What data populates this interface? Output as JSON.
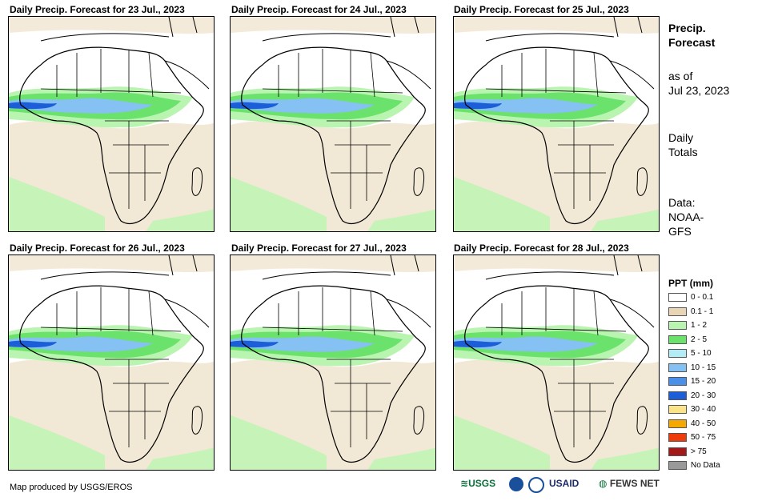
{
  "panels": [
    {
      "title": "Daily Precip. Forecast for 23 Jul., 2023"
    },
    {
      "title": "Daily Precip. Forecast for 24 Jul., 2023"
    },
    {
      "title": "Daily Precip. Forecast for 25 Jul., 2023"
    },
    {
      "title": "Daily Precip. Forecast for 26 Jul., 2023"
    },
    {
      "title": "Daily Precip. Forecast for 27 Jul., 2023"
    },
    {
      "title": "Daily Precip. Forecast for 28 Jul., 2023"
    }
  ],
  "sidebar": {
    "heading_line1": "Precip.",
    "heading_line2": "Forecast",
    "asof_line1": "as of",
    "asof_line2": "Jul 23, 2023",
    "totals_line1": "Daily",
    "totals_line2": "Totals",
    "data_line1": "Data:",
    "data_line2": "NOAA-",
    "data_line3": "GFS"
  },
  "legend": {
    "title": "PPT (mm)",
    "items": [
      {
        "label": "0 - 0.1",
        "color": "#ffffff"
      },
      {
        "label": "0.1 - 1",
        "color": "#e8d5b5"
      },
      {
        "label": "1 - 2",
        "color": "#b9f5b0"
      },
      {
        "label": "2 - 5",
        "color": "#6be26b"
      },
      {
        "label": "5 - 10",
        "color": "#b4ecf5"
      },
      {
        "label": "10 - 15",
        "color": "#86c1f3"
      },
      {
        "label": "15 - 20",
        "color": "#4a90e8"
      },
      {
        "label": "20 - 30",
        "color": "#1c5ed8"
      },
      {
        "label": "30 - 40",
        "color": "#fbe38a"
      },
      {
        "label": "40 - 50",
        "color": "#f5a800"
      },
      {
        "label": "50 - 75",
        "color": "#ef3b0a"
      },
      {
        "label": "> 75",
        "color": "#a31818"
      },
      {
        "label": "No Data",
        "color": "#999999"
      }
    ]
  },
  "footer": {
    "credit": "Map produced by USGS/EROS"
  },
  "logos": {
    "usgs": "USGS",
    "usaid": "USAID",
    "fewsnet": "FEWS NET"
  }
}
